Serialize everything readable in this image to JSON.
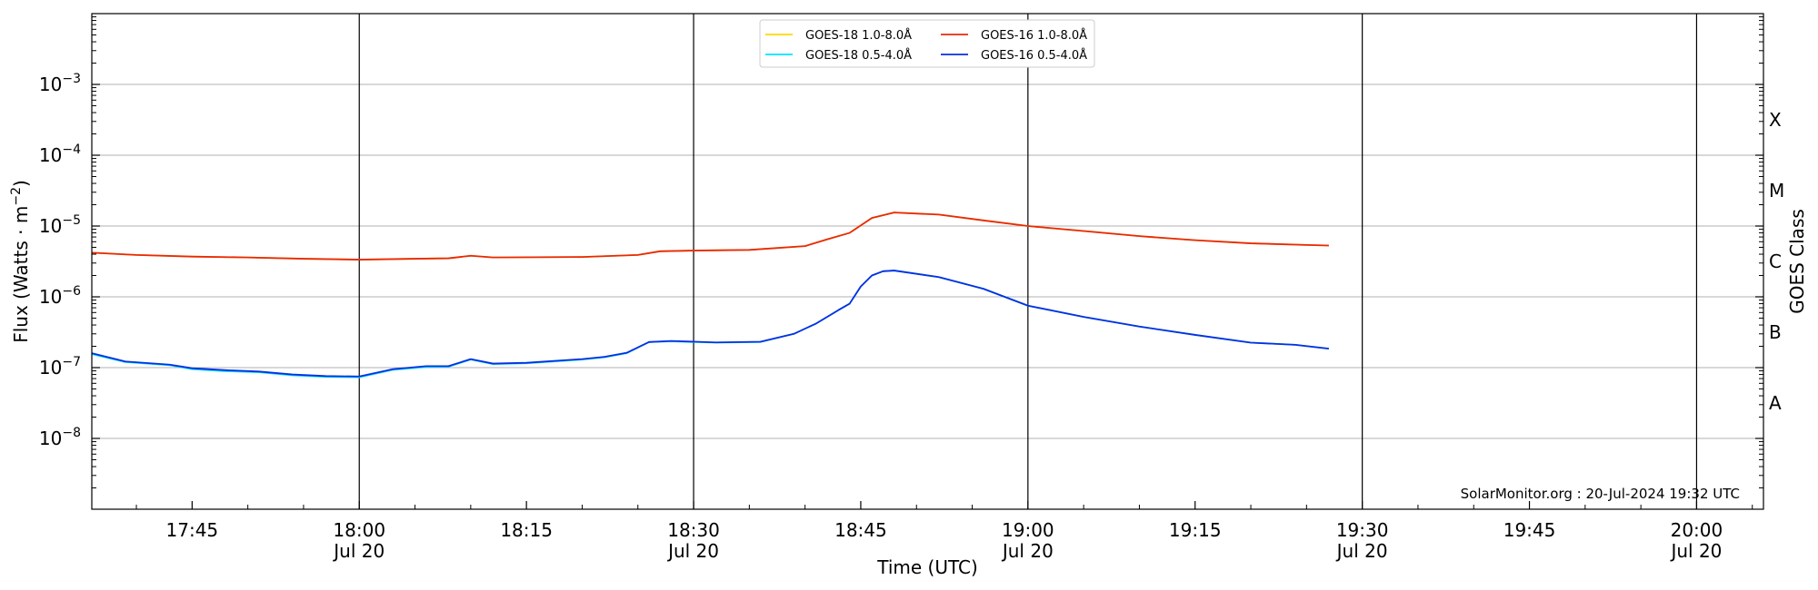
{
  "chart_data": {
    "type": "line",
    "xlabel": "Time (UTC)",
    "ylabel": "Flux (Watts · m",
    "ylabel_sup": "−2",
    "ylabel_close": ")",
    "right_label": "GOES Class",
    "y_scale": "log",
    "ylim": [
      1e-09,
      0.01
    ],
    "xlim": [
      "17:36",
      "20:06"
    ],
    "grid": "horizontal",
    "legend_position": "top-center",
    "credit": "SolarMonitor.org : 20-Jul-2024 19:32 UTC",
    "x_ticks": [
      {
        "time": "17:45",
        "line1": "17:45",
        "line2": ""
      },
      {
        "time": "18:00",
        "line1": "18:00",
        "line2": "Jul 20"
      },
      {
        "time": "18:15",
        "line1": "18:15",
        "line2": ""
      },
      {
        "time": "18:30",
        "line1": "18:30",
        "line2": "Jul 20"
      },
      {
        "time": "18:45",
        "line1": "18:45",
        "line2": ""
      },
      {
        "time": "19:00",
        "line1": "19:00",
        "line2": "Jul 20"
      },
      {
        "time": "19:15",
        "line1": "19:15",
        "line2": ""
      },
      {
        "time": "19:30",
        "line1": "19:30",
        "line2": "Jul 20"
      },
      {
        "time": "19:45",
        "line1": "19:45",
        "line2": ""
      },
      {
        "time": "20:00",
        "line1": "20:00",
        "line2": "Jul 20"
      }
    ],
    "vertical_lines": [
      "18:00",
      "18:30",
      "19:00",
      "19:30",
      "20:00"
    ],
    "y_ticks": [
      {
        "exp": -8,
        "base": "10",
        "sup": "−8"
      },
      {
        "exp": -7,
        "base": "10",
        "sup": "−7"
      },
      {
        "exp": -6,
        "base": "10",
        "sup": "−6"
      },
      {
        "exp": -5,
        "base": "10",
        "sup": "−5"
      },
      {
        "exp": -4,
        "base": "10",
        "sup": "−4"
      },
      {
        "exp": -3,
        "base": "10",
        "sup": "−3"
      }
    ],
    "goes_classes": [
      {
        "label": "A",
        "exp": -7.5
      },
      {
        "label": "B",
        "exp": -6.5
      },
      {
        "label": "C",
        "exp": -5.5
      },
      {
        "label": "M",
        "exp": -4.5
      },
      {
        "label": "X",
        "exp": -3.5
      }
    ],
    "series": [
      {
        "name": "GOES-18 1.0-8.0Å",
        "color": "#ffd700",
        "points": [
          [
            "17:36",
            4.2e-06
          ],
          [
            "17:40",
            3.9e-06
          ],
          [
            "17:45",
            3.7e-06
          ],
          [
            "17:50",
            3.6e-06
          ],
          [
            "17:55",
            3.45e-06
          ],
          [
            "18:00",
            3.35e-06
          ],
          [
            "18:05",
            3.45e-06
          ],
          [
            "18:08",
            3.5e-06
          ],
          [
            "18:10",
            3.8e-06
          ],
          [
            "18:12",
            3.6e-06
          ],
          [
            "18:20",
            3.65e-06
          ],
          [
            "18:25",
            3.9e-06
          ],
          [
            "18:27",
            4.4e-06
          ],
          [
            "18:30",
            4.5e-06
          ],
          [
            "18:35",
            4.6e-06
          ],
          [
            "18:40",
            5.2e-06
          ],
          [
            "18:42",
            6.5e-06
          ],
          [
            "18:44",
            8e-06
          ],
          [
            "18:46",
            1.3e-05
          ],
          [
            "18:48",
            1.55e-05
          ],
          [
            "18:52",
            1.45e-05
          ],
          [
            "18:56",
            1.2e-05
          ],
          [
            "19:00",
            1e-05
          ],
          [
            "19:05",
            8.5e-06
          ],
          [
            "19:10",
            7.2e-06
          ],
          [
            "19:15",
            6.3e-06
          ],
          [
            "19:20",
            5.7e-06
          ],
          [
            "19:25",
            5.4e-06
          ],
          [
            "19:27",
            5.3e-06
          ]
        ]
      },
      {
        "name": "GOES-16 1.0-8.0Å",
        "color": "#e8280c",
        "points": [
          [
            "17:36",
            4.2e-06
          ],
          [
            "17:40",
            3.9e-06
          ],
          [
            "17:45",
            3.7e-06
          ],
          [
            "17:50",
            3.6e-06
          ],
          [
            "17:55",
            3.45e-06
          ],
          [
            "18:00",
            3.35e-06
          ],
          [
            "18:05",
            3.45e-06
          ],
          [
            "18:08",
            3.5e-06
          ],
          [
            "18:10",
            3.8e-06
          ],
          [
            "18:12",
            3.6e-06
          ],
          [
            "18:20",
            3.65e-06
          ],
          [
            "18:25",
            3.9e-06
          ],
          [
            "18:27",
            4.4e-06
          ],
          [
            "18:30",
            4.5e-06
          ],
          [
            "18:35",
            4.6e-06
          ],
          [
            "18:40",
            5.2e-06
          ],
          [
            "18:42",
            6.5e-06
          ],
          [
            "18:44",
            8e-06
          ],
          [
            "18:46",
            1.3e-05
          ],
          [
            "18:48",
            1.55e-05
          ],
          [
            "18:52",
            1.45e-05
          ],
          [
            "18:56",
            1.2e-05
          ],
          [
            "19:00",
            1e-05
          ],
          [
            "19:05",
            8.5e-06
          ],
          [
            "19:10",
            7.2e-06
          ],
          [
            "19:15",
            6.3e-06
          ],
          [
            "19:20",
            5.7e-06
          ],
          [
            "19:25",
            5.4e-06
          ],
          [
            "19:27",
            5.3e-06
          ]
        ]
      },
      {
        "name": "GOES-18 0.5-4.0Å",
        "color": "#00e5ff",
        "points": [
          [
            "17:36",
            1.55e-07
          ],
          [
            "17:39",
            1.2e-07
          ],
          [
            "17:43",
            1.08e-07
          ],
          [
            "17:45",
            9.5e-08
          ],
          [
            "17:48",
            8.9e-08
          ],
          [
            "17:51",
            8.6e-08
          ],
          [
            "17:54",
            7.8e-08
          ],
          [
            "17:57",
            7.4e-08
          ],
          [
            "18:00",
            7.3e-08
          ],
          [
            "18:03",
            9.3e-08
          ],
          [
            "18:06",
            1.02e-07
          ],
          [
            "18:08",
            1.03e-07
          ],
          [
            "18:10",
            1.3e-07
          ],
          [
            "18:12",
            1.12e-07
          ],
          [
            "18:15",
            1.15e-07
          ],
          [
            "18:20",
            1.3e-07
          ],
          [
            "18:22",
            1.4e-07
          ],
          [
            "18:24",
            1.6e-07
          ],
          [
            "18:26",
            2.3e-07
          ],
          [
            "18:28",
            2.35e-07
          ],
          [
            "18:32",
            2.25e-07
          ],
          [
            "18:36",
            2.3e-07
          ],
          [
            "18:39",
            3e-07
          ],
          [
            "18:41",
            4.2e-07
          ],
          [
            "18:43",
            6.5e-07
          ],
          [
            "18:44",
            8e-07
          ],
          [
            "18:45",
            1.4e-06
          ],
          [
            "18:46",
            2e-06
          ],
          [
            "18:47",
            2.3e-06
          ],
          [
            "18:48",
            2.35e-06
          ],
          [
            "18:52",
            1.9e-06
          ],
          [
            "18:56",
            1.3e-06
          ],
          [
            "19:00",
            7.5e-07
          ],
          [
            "19:05",
            5.2e-07
          ],
          [
            "19:10",
            3.8e-07
          ],
          [
            "19:15",
            2.9e-07
          ],
          [
            "19:20",
            2.25e-07
          ],
          [
            "19:24",
            2.1e-07
          ],
          [
            "19:27",
            1.85e-07
          ]
        ]
      },
      {
        "name": "GOES-16 0.5-4.0Å",
        "color": "#0a2ee0",
        "points": [
          [
            "17:36",
            1.6e-07
          ],
          [
            "17:39",
            1.22e-07
          ],
          [
            "17:43",
            1.1e-07
          ],
          [
            "17:45",
            9.8e-08
          ],
          [
            "17:48",
            9.2e-08
          ],
          [
            "17:51",
            8.8e-08
          ],
          [
            "17:54",
            8e-08
          ],
          [
            "17:57",
            7.6e-08
          ],
          [
            "18:00",
            7.5e-08
          ],
          [
            "18:03",
            9.5e-08
          ],
          [
            "18:06",
            1.05e-07
          ],
          [
            "18:08",
            1.05e-07
          ],
          [
            "18:10",
            1.32e-07
          ],
          [
            "18:12",
            1.14e-07
          ],
          [
            "18:15",
            1.17e-07
          ],
          [
            "18:20",
            1.32e-07
          ],
          [
            "18:22",
            1.42e-07
          ],
          [
            "18:24",
            1.62e-07
          ],
          [
            "18:26",
            2.3e-07
          ],
          [
            "18:28",
            2.38e-07
          ],
          [
            "18:32",
            2.27e-07
          ],
          [
            "18:36",
            2.32e-07
          ],
          [
            "18:39",
            3e-07
          ],
          [
            "18:41",
            4.2e-07
          ],
          [
            "18:43",
            6.5e-07
          ],
          [
            "18:44",
            8e-07
          ],
          [
            "18:45",
            1.4e-06
          ],
          [
            "18:46",
            2e-06
          ],
          [
            "18:47",
            2.3e-06
          ],
          [
            "18:48",
            2.35e-06
          ],
          [
            "18:52",
            1.9e-06
          ],
          [
            "18:56",
            1.3e-06
          ],
          [
            "19:00",
            7.5e-07
          ],
          [
            "19:05",
            5.2e-07
          ],
          [
            "19:10",
            3.8e-07
          ],
          [
            "19:15",
            2.9e-07
          ],
          [
            "19:20",
            2.25e-07
          ],
          [
            "19:24",
            2.1e-07
          ],
          [
            "19:27",
            1.85e-07
          ]
        ]
      }
    ]
  }
}
